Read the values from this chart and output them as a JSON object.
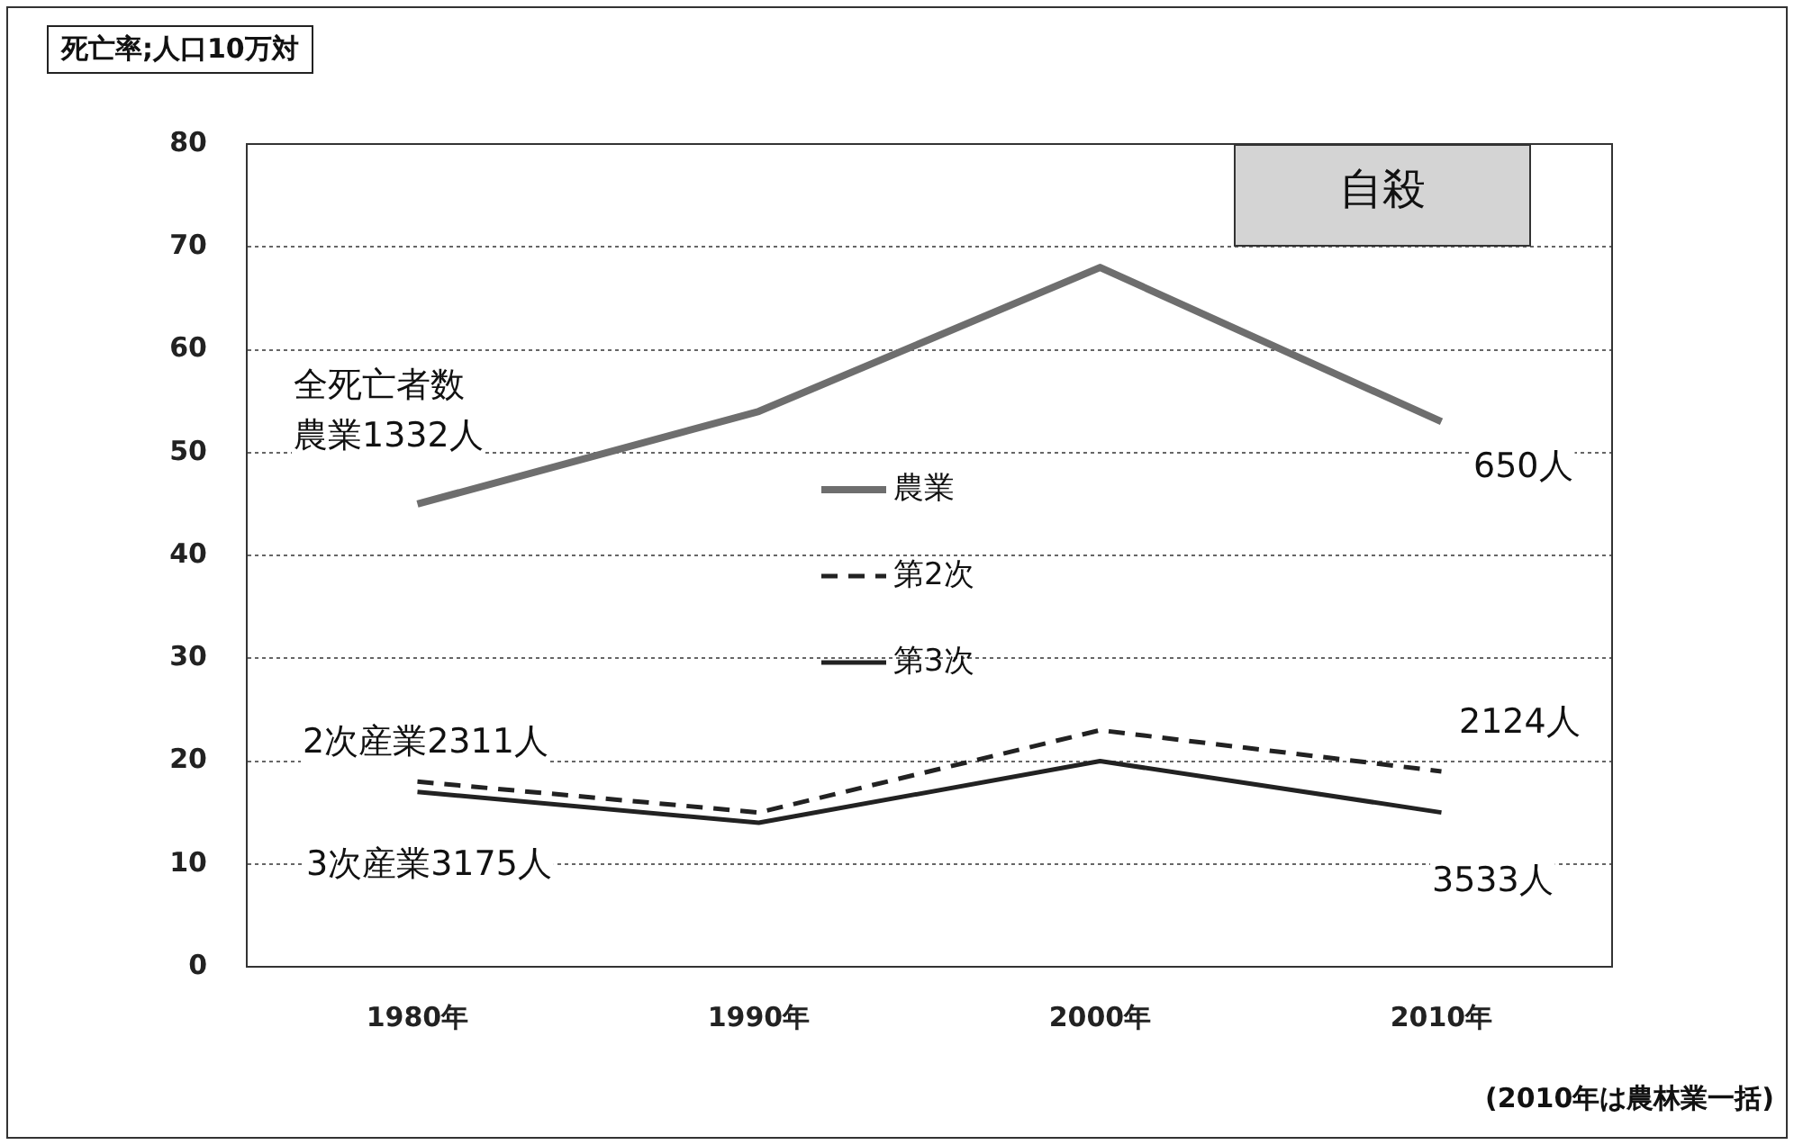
{
  "chart_data": {
    "type": "line",
    "title": "自殺",
    "ylabel": "死亡率;人口10万対",
    "categories": [
      "1980年",
      "1990年",
      "2000年",
      "2010年"
    ],
    "series": [
      {
        "name": "農業",
        "color": "#6e6e6e",
        "values": [
          45,
          54,
          68,
          53
        ]
      },
      {
        "name": "第2次",
        "color": "#222222",
        "values": [
          18,
          15,
          23,
          19
        ],
        "line_style": "dashed"
      },
      {
        "name": "第3次",
        "color": "#222222",
        "values": [
          17,
          14,
          20,
          15
        ]
      }
    ],
    "ylim": [
      0,
      80
    ],
    "yticks": [
      0,
      10,
      20,
      30,
      40,
      50,
      60,
      70,
      80
    ],
    "grid": "y",
    "legend": "center",
    "marker": "none",
    "line_style": "solid",
    "annotations": [
      "全死亡者数",
      "農業1332人",
      "650人",
      "2次産業2311人",
      "2124人",
      "3次産業3175人",
      "3533人",
      "(2010年は農林業一括)"
    ]
  }
}
